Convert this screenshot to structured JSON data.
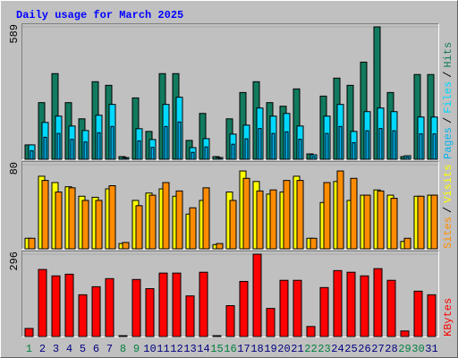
{
  "chart_data": {
    "type": "bar",
    "title": "Daily usage for March 2025",
    "categories": [
      "1",
      "2",
      "3",
      "4",
      "5",
      "6",
      "7",
      "8",
      "9",
      "10",
      "11",
      "12",
      "13",
      "14",
      "15",
      "16",
      "17",
      "18",
      "19",
      "20",
      "21",
      "22",
      "23",
      "24",
      "25",
      "26",
      "27",
      "28",
      "29",
      "30",
      "31"
    ],
    "category_colors": [
      "#007f3f",
      "#00007f",
      "#00007f",
      "#00007f",
      "#00007f",
      "#00007f",
      "#00007f",
      "#007f3f",
      "#007f3f",
      "#00007f",
      "#00007f",
      "#00007f",
      "#00007f",
      "#00007f",
      "#007f3f",
      "#007f3f",
      "#00007f",
      "#00007f",
      "#00007f",
      "#00007f",
      "#00007f",
      "#007f3f",
      "#007f3f",
      "#00007f",
      "#00007f",
      "#00007f",
      "#00007f",
      "#00007f",
      "#007f3f",
      "#007f3f",
      "#00007f"
    ],
    "legend_separator": "/",
    "panels": [
      {
        "ylim": [
          0,
          589
        ],
        "yticks": [
          589
        ],
        "legend_order": [
          2,
          1,
          0
        ],
        "series": [
          {
            "name": "Hits",
            "color": "#127a5e",
            "values": [
              64,
              252,
              381,
              252,
              180,
              345,
              329,
              12,
              273,
              124,
              381,
              381,
              84,
              204,
              12,
              180,
              297,
              345,
              252,
              236,
              313,
              24,
              281,
              361,
              329,
              432,
              589,
              297,
              12,
              377,
              377
            ]
          },
          {
            "name": "Files",
            "color": "#00d8ff",
            "values": [
              64,
              164,
              192,
              148,
              128,
              196,
              244,
              8,
              136,
              88,
              244,
              276,
              52,
              92,
              8,
              112,
              152,
              228,
              192,
              204,
              148,
              20,
              192,
              244,
              124,
              212,
              228,
              212,
              16,
              188,
              188
            ]
          },
          {
            "name": "Pages",
            "color": "#00b4f0",
            "values": [
              38,
              98,
              115,
              89,
              77,
              118,
              146,
              5,
              82,
              53,
              146,
              166,
              31,
              55,
              5,
              67,
              91,
              137,
              115,
              122,
              89,
              12,
              115,
              146,
              74,
              127,
              137,
              127,
              10,
              113,
              113
            ]
          }
        ]
      },
      {
        "ylim": [
          0,
          80
        ],
        "yticks": [
          80
        ],
        "legend_order": [
          1,
          0
        ],
        "series": [
          {
            "name": "Visits",
            "color": "#ffff00",
            "values": [
              10,
              69,
              63,
              59,
              50,
              49,
              57,
              5,
              46,
              53,
              57,
              50,
              33,
              46,
              4,
              54,
              74,
              64,
              52,
              54,
              69,
              10,
              44,
              64,
              46,
              51,
              56,
              51,
              7,
              50,
              51
            ]
          },
          {
            "name": "Sites",
            "color": "#ff8c00",
            "values": [
              10,
              65,
              54,
              58,
              46,
              46,
              60,
              6,
              41,
              51,
              63,
              55,
              39,
              58,
              5,
              46,
              67,
              55,
              56,
              65,
              65,
              10,
              63,
              74,
              67,
              51,
              55,
              48,
              10,
              50,
              51
            ]
          }
        ]
      },
      {
        "ylim": [
          0,
          296
        ],
        "yticks": [
          296
        ],
        "legend_order": [
          0
        ],
        "series": [
          {
            "name": "KBytes",
            "color": "#ff0000",
            "values": [
              29,
              241,
              218,
              224,
              150,
              179,
              208,
              3,
              205,
              172,
              228,
              228,
              146,
              231,
              3,
              111,
              198,
              296,
              101,
              202,
              202,
              36,
              176,
              237,
              231,
              218,
              244,
              202,
              20,
              163,
              150
            ]
          }
        ]
      }
    ]
  }
}
